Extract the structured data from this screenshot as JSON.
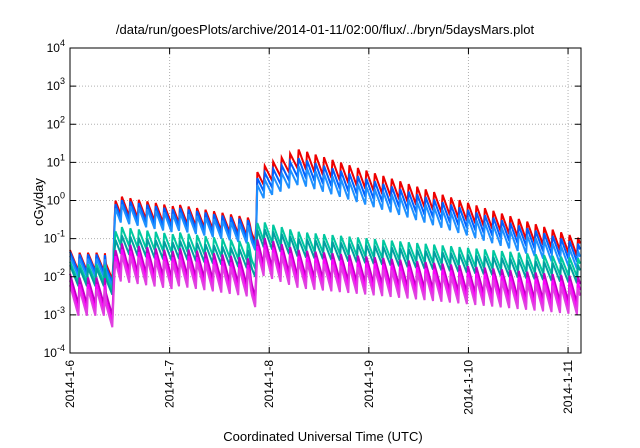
{
  "chart_data": {
    "type": "line",
    "title": "/data/run/goesPlots/archive/2014-01-11/02:00/flux/../bryn/5daysMars.plot",
    "xlabel": "Coordinated Universal Time (UTC)",
    "ylabel": "cGy/day",
    "y_scale": "log",
    "ylim": [
      0.0001,
      10000
    ],
    "xlim": [
      0,
      5.13
    ],
    "grid": true,
    "legend": "none",
    "x_ticks": [
      {
        "pos": 0,
        "label": "2014-1-6"
      },
      {
        "pos": 1,
        "label": "2014-1-7"
      },
      {
        "pos": 2,
        "label": "2014-1-8"
      },
      {
        "pos": 3,
        "label": "2014-1-9"
      },
      {
        "pos": 4,
        "label": "2014-1-10"
      },
      {
        "pos": 5,
        "label": "2014-1-11"
      }
    ],
    "y_ticks": [
      {
        "pos": 0.0001,
        "base": "10",
        "exp": "-4"
      },
      {
        "pos": 0.001,
        "base": "10",
        "exp": "-3"
      },
      {
        "pos": 0.01,
        "base": "10",
        "exp": "-2"
      },
      {
        "pos": 0.1,
        "base": "10",
        "exp": "-1"
      },
      {
        "pos": 1,
        "base": "10",
        "exp": "0"
      },
      {
        "pos": 10,
        "base": "10",
        "exp": "1"
      },
      {
        "pos": 100,
        "base": "10",
        "exp": "2"
      },
      {
        "pos": 1000,
        "base": "10",
        "exp": "3"
      },
      {
        "pos": 10000,
        "base": "10",
        "exp": "4"
      }
    ],
    "series": [
      {
        "color": "#ee0000",
        "peaks": [
          [
            0,
            0.05
          ],
          [
            0.35,
            0.05
          ],
          [
            0.36,
            0.03
          ],
          [
            0.44,
            0.03
          ],
          [
            0.45,
            1.6
          ],
          [
            1.8,
            0.35
          ],
          [
            1.82,
            0.25
          ],
          [
            1.87,
            0.25
          ],
          [
            1.88,
            6.5
          ],
          [
            2.3,
            22
          ],
          [
            5.13,
            0.1
          ]
        ],
        "amp": 0.55
      },
      {
        "color": "#0060ff",
        "peaks": [
          [
            0,
            0.045
          ],
          [
            0.35,
            0.045
          ],
          [
            0.36,
            0.025
          ],
          [
            0.44,
            0.025
          ],
          [
            0.45,
            1.3
          ],
          [
            1.8,
            0.3
          ],
          [
            1.82,
            0.2
          ],
          [
            1.87,
            0.2
          ],
          [
            1.88,
            4.5
          ],
          [
            2.3,
            13
          ],
          [
            5.13,
            0.07
          ]
        ],
        "amp": 0.55
      },
      {
        "color": "#1e90ff",
        "peaks": [
          [
            0,
            0.035
          ],
          [
            0.35,
            0.035
          ],
          [
            0.36,
            0.02
          ],
          [
            0.44,
            0.02
          ],
          [
            0.45,
            1.0
          ],
          [
            1.8,
            0.22
          ],
          [
            1.82,
            0.15
          ],
          [
            1.87,
            0.15
          ],
          [
            1.88,
            3.0
          ],
          [
            2.3,
            8
          ],
          [
            5.13,
            0.045
          ]
        ],
        "amp": 0.55
      },
      {
        "color": "#00c8a0",
        "peaks": [
          [
            0,
            0.025
          ],
          [
            0.35,
            0.025
          ],
          [
            0.36,
            0.015
          ],
          [
            0.44,
            0.015
          ],
          [
            0.45,
            0.25
          ],
          [
            1.8,
            0.08
          ],
          [
            1.82,
            0.05
          ],
          [
            1.87,
            0.05
          ],
          [
            1.88,
            0.3
          ],
          [
            2.3,
            0.15
          ],
          [
            5.13,
            0.03
          ]
        ],
        "amp": 0.55
      },
      {
        "color": "#00a0a0",
        "peaks": [
          [
            0,
            0.02
          ],
          [
            0.35,
            0.02
          ],
          [
            0.36,
            0.012
          ],
          [
            0.44,
            0.012
          ],
          [
            0.45,
            0.15
          ],
          [
            1.8,
            0.05
          ],
          [
            1.82,
            0.03
          ],
          [
            1.87,
            0.03
          ],
          [
            1.88,
            0.2
          ],
          [
            2.3,
            0.1
          ],
          [
            5.13,
            0.02
          ]
        ],
        "amp": 0.55
      },
      {
        "color": "#c000c0",
        "peaks": [
          [
            0,
            0.012
          ],
          [
            0.35,
            0.012
          ],
          [
            0.36,
            0.006
          ],
          [
            0.44,
            0.006
          ],
          [
            0.45,
            0.1
          ],
          [
            1.8,
            0.03
          ],
          [
            1.82,
            0.015
          ],
          [
            1.87,
            0.015
          ],
          [
            1.88,
            0.12
          ],
          [
            2.3,
            0.05
          ],
          [
            5.13,
            0.01
          ]
        ],
        "amp": 0.8
      },
      {
        "color": "#ff00ff",
        "peaks": [
          [
            0,
            0.008
          ],
          [
            0.35,
            0.008
          ],
          [
            0.36,
            0.004
          ],
          [
            0.44,
            0.004
          ],
          [
            0.45,
            0.07
          ],
          [
            1.8,
            0.02
          ],
          [
            1.82,
            0.01
          ],
          [
            1.87,
            0.01
          ],
          [
            1.88,
            0.08
          ],
          [
            2.3,
            0.035
          ],
          [
            5.13,
            0.007
          ]
        ],
        "amp": 0.8
      },
      {
        "color": "#e040e0",
        "peaks": [
          [
            0,
            0.006
          ],
          [
            0.35,
            0.006
          ],
          [
            0.36,
            0.003
          ],
          [
            0.44,
            0.003
          ],
          [
            0.45,
            0.05
          ],
          [
            1.8,
            0.015
          ],
          [
            1.82,
            0.008
          ],
          [
            1.87,
            0.008
          ],
          [
            1.88,
            0.06
          ],
          [
            2.3,
            0.025
          ],
          [
            5.13,
            0.005
          ]
        ],
        "amp": 0.8
      }
    ],
    "sawtooth_period_days": 0.085
  }
}
